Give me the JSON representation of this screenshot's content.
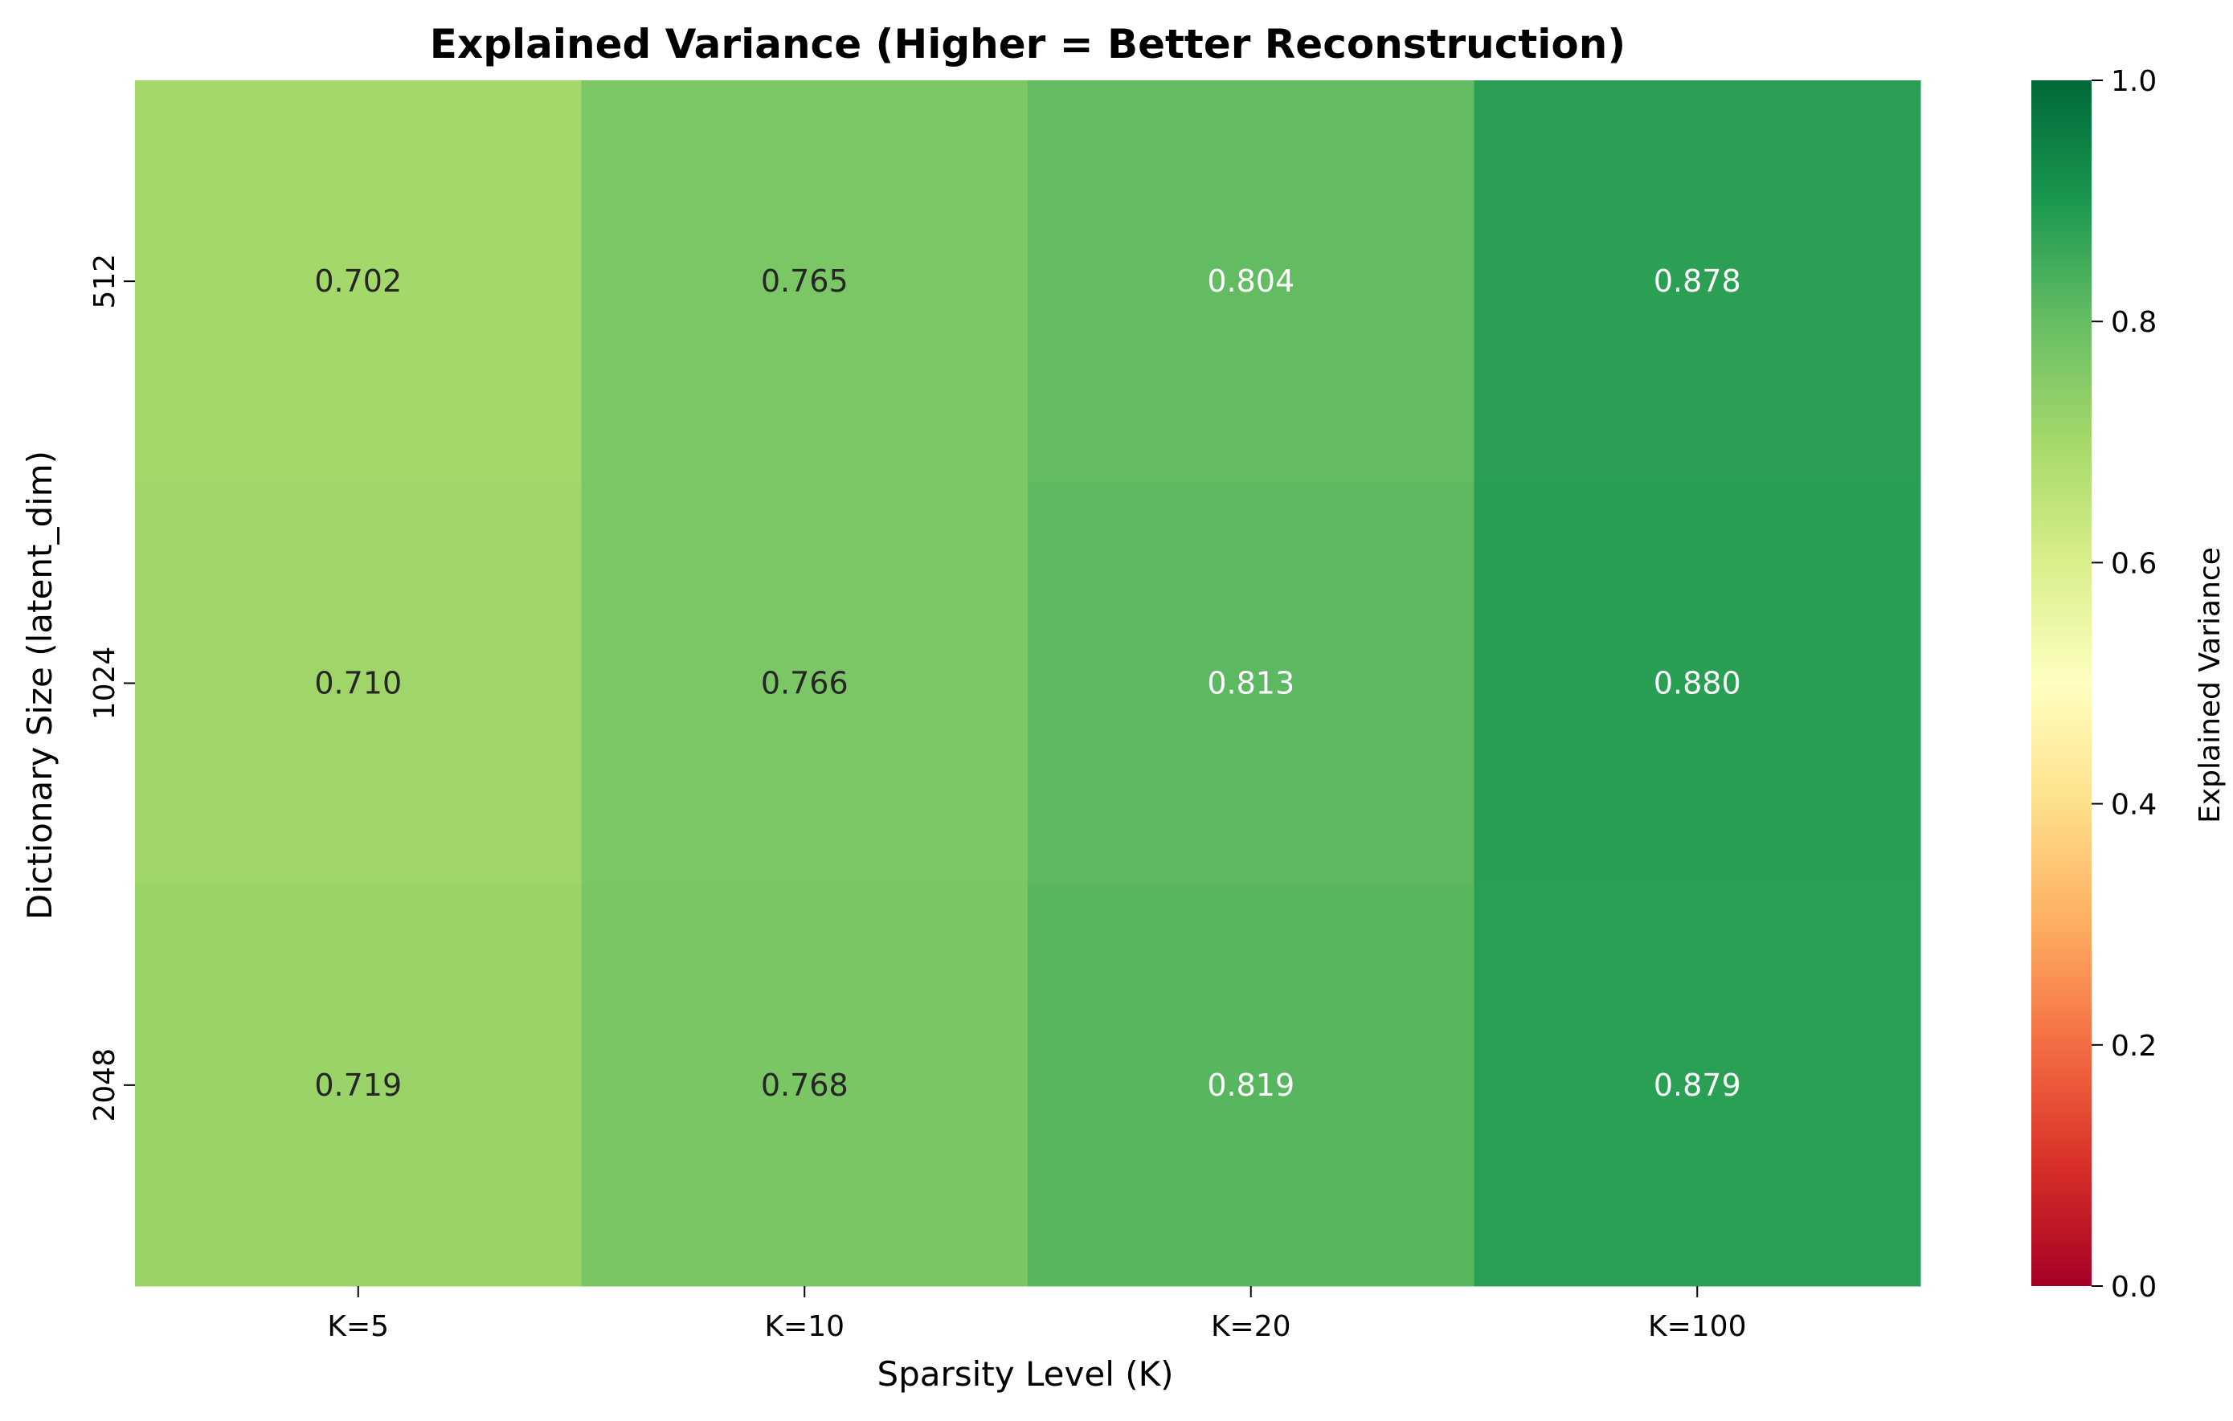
{
  "chart_data": {
    "type": "heatmap",
    "title": "Explained Variance (Higher = Better Reconstruction)",
    "xlabel": "Sparsity Level (K)",
    "ylabel": "Dictionary Size (latent_dim)",
    "x_categories": [
      "K=5",
      "K=10",
      "K=20",
      "K=100"
    ],
    "y_categories": [
      "512",
      "1024",
      "2048"
    ],
    "values": [
      [
        0.702,
        0.765,
        0.804,
        0.878
      ],
      [
        0.71,
        0.766,
        0.813,
        0.88
      ],
      [
        0.719,
        0.768,
        0.819,
        0.879
      ]
    ],
    "value_labels": [
      [
        "0.702",
        "0.765",
        "0.804",
        "0.878"
      ],
      [
        "0.710",
        "0.766",
        "0.813",
        "0.880"
      ],
      [
        "0.719",
        "0.768",
        "0.819",
        "0.879"
      ]
    ],
    "colormap": "RdYlGn",
    "vmin": 0.0,
    "vmax": 1.0,
    "colorbar": {
      "label": "Explained Variance",
      "ticks": [
        "0.0",
        "0.2",
        "0.4",
        "0.6",
        "0.8",
        "1.0"
      ]
    },
    "annotation_colors": {
      "dark": "#262626",
      "light": "#ffffff"
    }
  }
}
